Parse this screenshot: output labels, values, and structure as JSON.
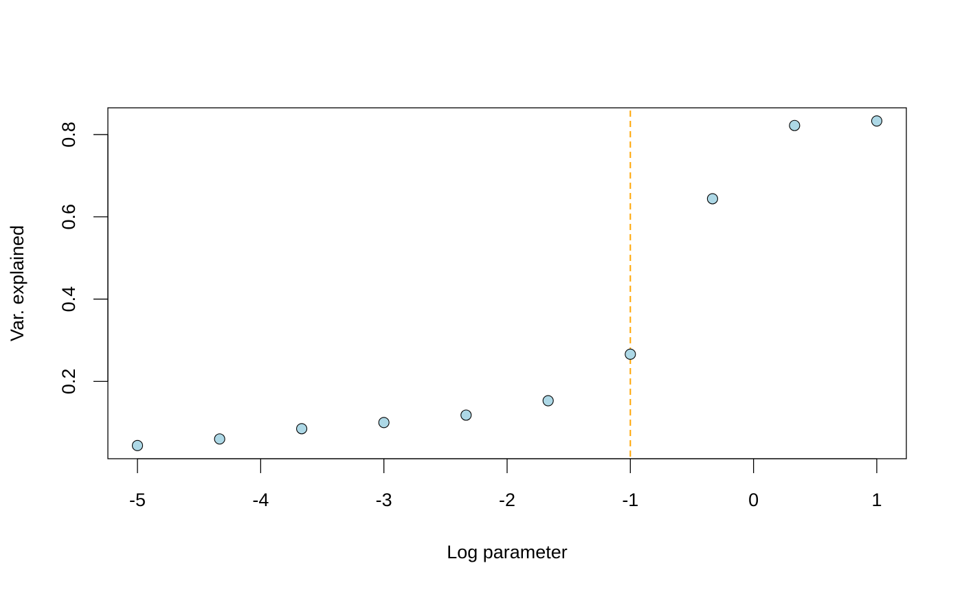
{
  "chart_data": {
    "type": "scatter",
    "title": "",
    "xlabel": "Log parameter",
    "ylabel": "Var. explained",
    "x_ticks": [
      -5,
      -4,
      -3,
      -2,
      -1,
      0,
      1
    ],
    "x_tick_labels": [
      "-5",
      "-4",
      "-3",
      "-2",
      "-1",
      "0",
      "1"
    ],
    "y_ticks": [
      0.2,
      0.4,
      0.6,
      0.8
    ],
    "y_tick_labels": [
      "0.2",
      "0.4",
      "0.6",
      "0.8"
    ],
    "xlim": [
      -5.24,
      1.24
    ],
    "ylim": [
      0.012,
      0.865
    ],
    "grid": false,
    "series": [
      {
        "x": [
          -5,
          -4.333,
          -3.667,
          -3,
          -2.333,
          -1.667,
          -1,
          -0.333,
          0.333,
          1
        ],
        "y": [
          0.044,
          0.06,
          0.085,
          0.1,
          0.118,
          0.153,
          0.266,
          0.644,
          0.822,
          0.833
        ],
        "point_fill": "#add8e6",
        "point_stroke": "#000000"
      }
    ],
    "reference_lines": [
      {
        "orientation": "vertical",
        "x": -1,
        "color": "#ffa500",
        "style": "dashed"
      }
    ]
  }
}
